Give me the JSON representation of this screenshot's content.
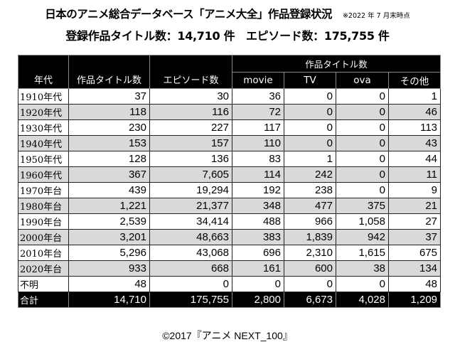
{
  "header": {
    "title": "日本のアニメ総合データベース「アニメ大全」作品登録状況",
    "note": "※2022 年 7 月末時点",
    "summary": "登録作品タイトル数：14,710 件　エピソード数：175,755 件"
  },
  "table": {
    "columns": {
      "era": "年代",
      "titles": "作品タイトル数",
      "episodes": "エピソード数",
      "group": "作品タイトル数",
      "movie": "movie",
      "tv": "TV",
      "ova": "ova",
      "other": "その他"
    },
    "rows": [
      {
        "era": "1910年代",
        "titles": "37",
        "episodes": "30",
        "movie": "36",
        "tv": "0",
        "ova": "0",
        "other": "1"
      },
      {
        "era": "1920年代",
        "titles": "118",
        "episodes": "116",
        "movie": "72",
        "tv": "0",
        "ova": "0",
        "other": "46"
      },
      {
        "era": "1930年代",
        "titles": "230",
        "episodes": "227",
        "movie": "117",
        "tv": "0",
        "ova": "0",
        "other": "113"
      },
      {
        "era": "1940年代",
        "titles": "153",
        "episodes": "157",
        "movie": "110",
        "tv": "0",
        "ova": "0",
        "other": "43"
      },
      {
        "era": "1950年代",
        "titles": "128",
        "episodes": "136",
        "movie": "83",
        "tv": "1",
        "ova": "0",
        "other": "44"
      },
      {
        "era": "1960年代",
        "titles": "367",
        "episodes": "7,605",
        "movie": "114",
        "tv": "242",
        "ova": "0",
        "other": "11"
      },
      {
        "era": "1970年台",
        "titles": "439",
        "episodes": "19,294",
        "movie": "192",
        "tv": "238",
        "ova": "0",
        "other": "9"
      },
      {
        "era": "1980年台",
        "titles": "1,221",
        "episodes": "21,377",
        "movie": "348",
        "tv": "477",
        "ova": "375",
        "other": "21"
      },
      {
        "era": "1990年台",
        "titles": "2,539",
        "episodes": "34,414",
        "movie": "488",
        "tv": "966",
        "ova": "1,058",
        "other": "27"
      },
      {
        "era": "2000年台",
        "titles": "3,201",
        "episodes": "48,663",
        "movie": "383",
        "tv": "1,839",
        "ova": "942",
        "other": "37"
      },
      {
        "era": "2010年台",
        "titles": "5,296",
        "episodes": "43,068",
        "movie": "696",
        "tv": "2,310",
        "ova": "1,615",
        "other": "675"
      },
      {
        "era": "2020年台",
        "titles": "933",
        "episodes": "668",
        "movie": "161",
        "tv": "600",
        "ova": "38",
        "other": "134"
      },
      {
        "era": "不明",
        "titles": "48",
        "episodes": "0",
        "movie": "0",
        "tv": "0",
        "ova": "0",
        "other": "48"
      }
    ],
    "total": {
      "era": "合計",
      "titles": "14,710",
      "episodes": "175,755",
      "movie": "2,800",
      "tv": "6,673",
      "ova": "4,028",
      "other": "1,209"
    }
  },
  "footer": {
    "copyright": "©2017『アニメ NEXT_100』"
  }
}
